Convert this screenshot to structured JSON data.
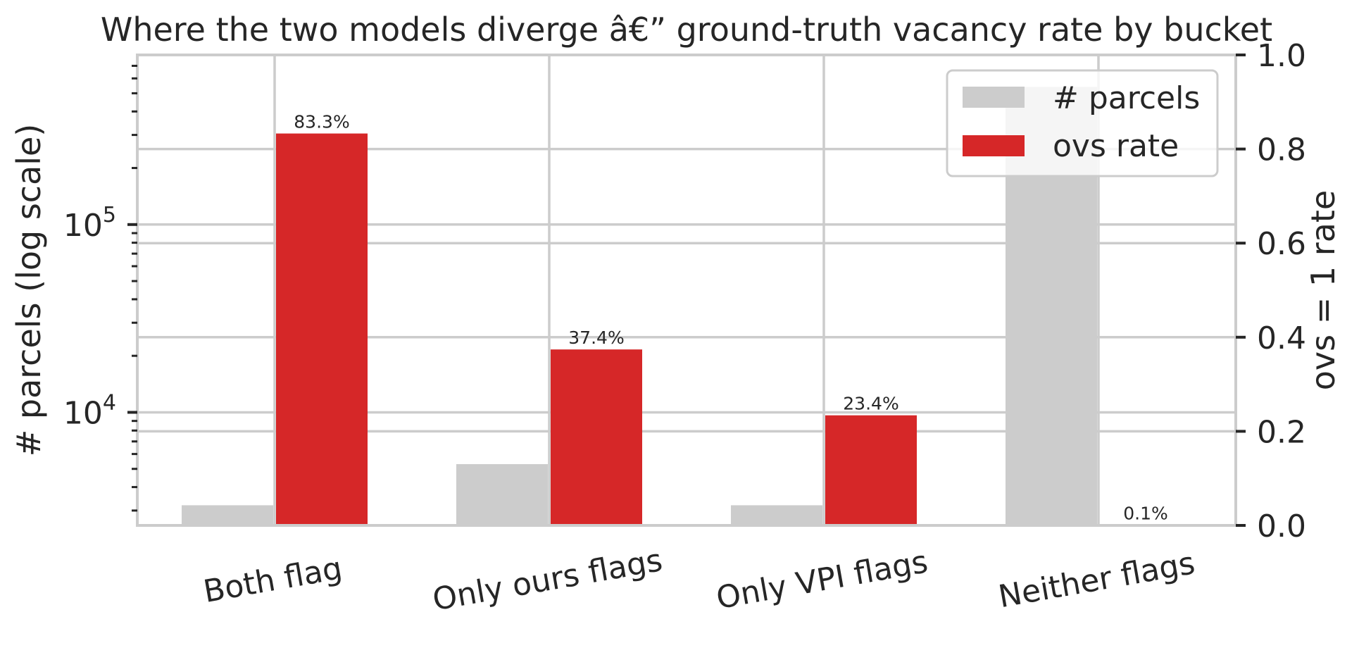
{
  "chart_data": {
    "type": "bar",
    "title": "Where the two models diverge â€” ground-truth vacancy rate by bucket",
    "categories": [
      "Both flag",
      "Only ours flags",
      "Only VPI flags",
      "Neither flags"
    ],
    "series": [
      {
        "name": "# parcels",
        "axis": "left",
        "color": "#cccccc",
        "values": [
          3200,
          5300,
          3200,
          540000
        ]
      },
      {
        "name": "ovs rate",
        "axis": "right",
        "color": "#d62728",
        "values": [
          0.833,
          0.374,
          0.234,
          0.001
        ],
        "data_labels": [
          "83.3%",
          "37.4%",
          "23.4%",
          "0.1%"
        ]
      }
    ],
    "y_left": {
      "label": "# parcels (log scale)",
      "scale": "log",
      "range": [
        2500,
        800000
      ],
      "major_ticks": [
        {
          "value": 10000,
          "base": "10",
          "exp": "4"
        },
        {
          "value": 100000,
          "base": "10",
          "exp": "5"
        }
      ]
    },
    "y_right": {
      "label": "ovs = 1 rate",
      "scale": "linear",
      "range": [
        0,
        1
      ],
      "ticks": [
        "0.0",
        "0.2",
        "0.4",
        "0.6",
        "0.8",
        "1.0"
      ]
    },
    "grid": true,
    "legend_position": "top-right"
  }
}
